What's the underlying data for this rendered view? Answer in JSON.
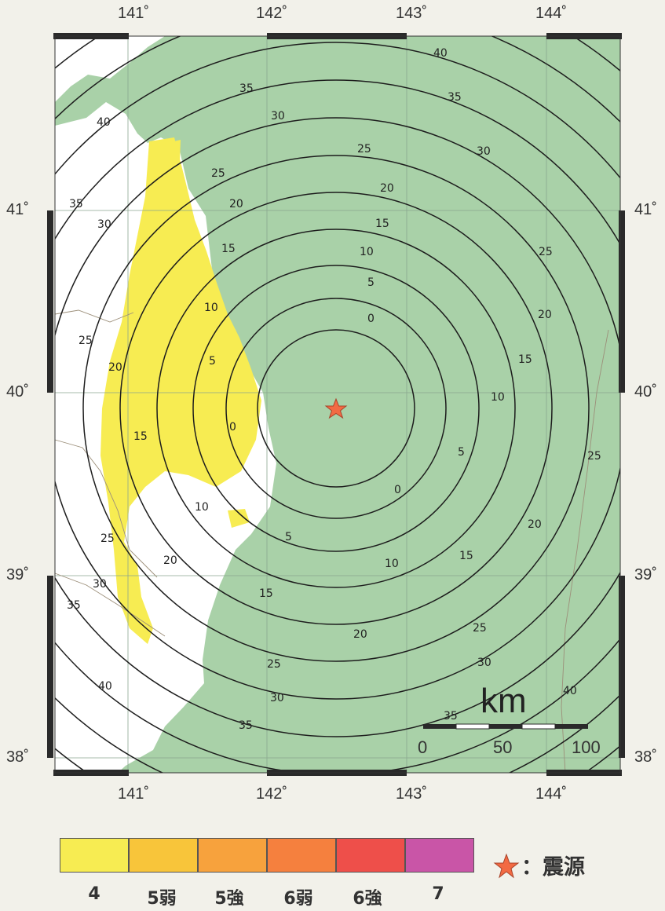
{
  "axes": {
    "longitude_ticks": [
      "141˚",
      "142˚",
      "143˚",
      "144˚"
    ],
    "latitude_ticks": [
      "41˚",
      "40˚",
      "39˚",
      "38˚"
    ]
  },
  "contours": {
    "epicenter_labels": [
      "0",
      "5",
      "10",
      "15",
      "20",
      "25",
      "30",
      "35",
      "40"
    ],
    "inland_labels": [
      "0",
      "5",
      "10",
      "15",
      "20",
      "25",
      "30",
      "35",
      "40"
    ]
  },
  "scale_bar": {
    "unit": "km",
    "labels": [
      "0",
      "50",
      "100"
    ]
  },
  "legend": {
    "classes": [
      {
        "label": "4",
        "color": "#f7ec52"
      },
      {
        "label": "5弱",
        "color": "#f8c53a"
      },
      {
        "label": "5強",
        "color": "#f7a23d"
      },
      {
        "label": "6弱",
        "color": "#f5803e"
      },
      {
        "label": "6強",
        "color": "#ee4f4a"
      },
      {
        "label": "7",
        "color": "#c955a7"
      }
    ],
    "epicenter_text": "：震源"
  },
  "colors": {
    "sea": "#a9d1a8",
    "land": "#ffffff",
    "intensity4": "#f7ec52",
    "epicenter": "#f26a43"
  }
}
